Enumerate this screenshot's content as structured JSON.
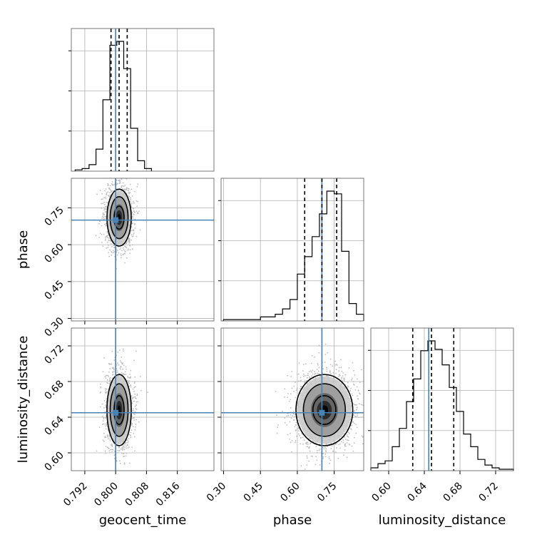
{
  "chart_data": {
    "type": "corner",
    "parameters": [
      "geocent_time",
      "phase",
      "luminosity_distance"
    ],
    "truths": {
      "geocent_time": 0.8,
      "phase": 0.7,
      "luminosity_distance": 0.645
    },
    "ranges": {
      "geocent_time": [
        0.7885,
        0.8255
      ],
      "phase": [
        0.29,
        0.87
      ],
      "luminosity_distance": [
        0.58,
        0.74
      ]
    },
    "ticks": {
      "geocent_time": [
        "0.792",
        "0.800",
        "0.808",
        "0.816"
      ],
      "phase": [
        "0.30",
        "0.45",
        "0.60",
        "0.75"
      ],
      "luminosity_distance": [
        "0.60",
        "0.64",
        "0.68",
        "0.72"
      ]
    },
    "quantiles": {
      "geocent_time": [
        0.7988,
        0.8009,
        0.803
      ],
      "phase": [
        0.63,
        0.7,
        0.76
      ],
      "luminosity_distance": [
        0.627,
        0.648,
        0.673
      ]
    },
    "histograms": {
      "geocent_time": {
        "edges": [
          0.7895,
          0.7913,
          0.7931,
          0.7949,
          0.7967,
          0.7985,
          0.8003,
          0.8021,
          0.8039,
          0.8057,
          0.8075,
          0.8093
        ],
        "counts": [
          0.01,
          0.02,
          0.05,
          0.17,
          0.55,
          0.97,
          1.0,
          0.79,
          0.33,
          0.08,
          0.02
        ]
      },
      "phase": {
        "edges": [
          0.3,
          0.33,
          0.36,
          0.39,
          0.42,
          0.45,
          0.48,
          0.51,
          0.54,
          0.57,
          0.6,
          0.63,
          0.66,
          0.69,
          0.72,
          0.75,
          0.78,
          0.81,
          0.84,
          0.87
        ],
        "counts": [
          0.01,
          0.01,
          0.01,
          0.01,
          0.01,
          0.03,
          0.03,
          0.05,
          0.09,
          0.16,
          0.35,
          0.48,
          0.63,
          0.8,
          0.97,
          0.95,
          0.52,
          0.13,
          0.05
        ]
      },
      "luminosity_distance": {
        "edges": [
          0.58,
          0.588,
          0.596,
          0.604,
          0.612,
          0.62,
          0.628,
          0.636,
          0.644,
          0.652,
          0.66,
          0.668,
          0.676,
          0.684,
          0.692,
          0.7,
          0.708,
          0.716,
          0.724,
          0.732,
          0.74
        ],
        "counts": [
          0.02,
          0.05,
          0.07,
          0.17,
          0.3,
          0.49,
          0.65,
          0.85,
          0.92,
          0.86,
          0.75,
          0.59,
          0.42,
          0.26,
          0.17,
          0.08,
          0.04,
          0.02,
          0.01,
          0.01
        ]
      }
    },
    "posterior_2d": {
      "phase_vs_geocent_time": {
        "mean_x": 0.8009,
        "mean_y": 0.71,
        "sd_x": 0.0015,
        "sd_y": 0.055
      },
      "luminosity_distance_vs_geocent_time": {
        "mean_x": 0.8009,
        "mean_y": 0.648,
        "sd_x": 0.0015,
        "sd_y": 0.019
      },
      "luminosity_distance_vs_phase": {
        "mean_x": 0.71,
        "mean_y": 0.648,
        "sd_x": 0.055,
        "sd_y": 0.019
      }
    },
    "colors": {
      "truth": "#4682b4",
      "hist": "#000000",
      "grid": "#b0b0b0",
      "samples": "#bdbdbd"
    },
    "grid": true
  }
}
